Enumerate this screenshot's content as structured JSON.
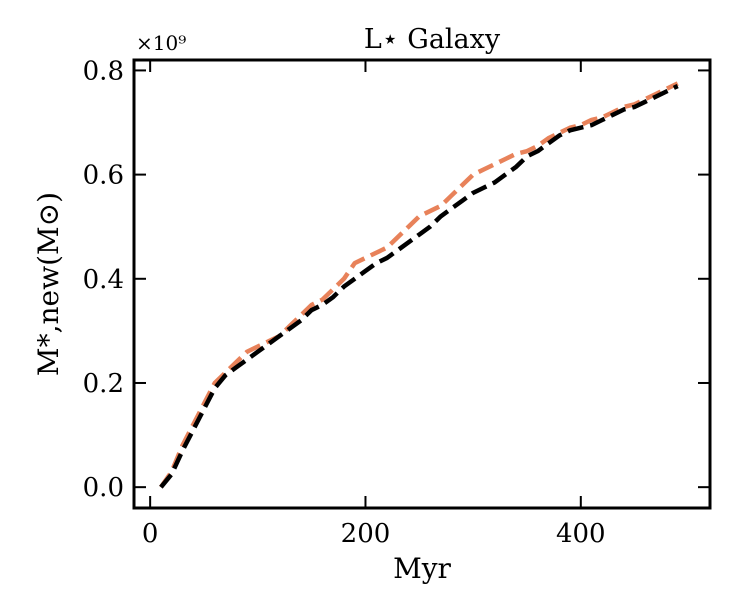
{
  "chart_data": {
    "type": "line",
    "title": "L⋆ Galaxy",
    "xlabel": "Myr",
    "ylabel": "M*,new(M⊙)",
    "y_multiplier": "×10⁹",
    "xlim": [
      -15,
      520
    ],
    "ylim": [
      -0.04,
      0.82
    ],
    "xticks": [
      0,
      200,
      400
    ],
    "xtick_labels": [
      "0",
      "200",
      "400"
    ],
    "yticks": [
      0.0,
      0.2,
      0.4,
      0.6,
      0.8
    ],
    "ytick_labels": [
      "0.0",
      "0.2",
      "0.4",
      "0.6",
      "0.8"
    ],
    "series": [
      {
        "name": "orange-dashed",
        "color": "#e8825a",
        "x": [
          10,
          20,
          30,
          40,
          50,
          60,
          70,
          80,
          90,
          100,
          110,
          120,
          130,
          140,
          150,
          160,
          170,
          180,
          190,
          200,
          210,
          220,
          230,
          240,
          250,
          260,
          270,
          280,
          290,
          300,
          310,
          320,
          330,
          340,
          350,
          360,
          370,
          380,
          390,
          400,
          410,
          420,
          430,
          440,
          450,
          460,
          470,
          480,
          490
        ],
        "values": [
          0.0,
          0.03,
          0.08,
          0.12,
          0.16,
          0.2,
          0.22,
          0.24,
          0.26,
          0.27,
          0.28,
          0.29,
          0.31,
          0.33,
          0.35,
          0.36,
          0.38,
          0.4,
          0.43,
          0.44,
          0.45,
          0.46,
          0.48,
          0.5,
          0.52,
          0.53,
          0.54,
          0.56,
          0.58,
          0.6,
          0.61,
          0.62,
          0.63,
          0.64,
          0.645,
          0.655,
          0.67,
          0.68,
          0.69,
          0.695,
          0.705,
          0.71,
          0.72,
          0.73,
          0.735,
          0.745,
          0.755,
          0.765,
          0.775
        ]
      },
      {
        "name": "black-dashed",
        "color": "#000000",
        "x": [
          10,
          20,
          30,
          40,
          50,
          60,
          70,
          80,
          90,
          100,
          110,
          120,
          130,
          140,
          150,
          160,
          170,
          180,
          190,
          200,
          210,
          220,
          230,
          240,
          250,
          260,
          270,
          280,
          290,
          300,
          310,
          320,
          330,
          340,
          350,
          360,
          370,
          380,
          390,
          400,
          410,
          420,
          430,
          440,
          450,
          460,
          470,
          480,
          490
        ],
        "values": [
          0.0,
          0.025,
          0.07,
          0.11,
          0.15,
          0.19,
          0.215,
          0.23,
          0.245,
          0.26,
          0.275,
          0.29,
          0.305,
          0.32,
          0.34,
          0.35,
          0.365,
          0.385,
          0.4,
          0.415,
          0.43,
          0.44,
          0.455,
          0.47,
          0.485,
          0.5,
          0.52,
          0.535,
          0.55,
          0.565,
          0.575,
          0.585,
          0.6,
          0.615,
          0.635,
          0.645,
          0.66,
          0.675,
          0.685,
          0.69,
          0.695,
          0.705,
          0.715,
          0.725,
          0.73,
          0.74,
          0.75,
          0.76,
          0.77
        ]
      }
    ]
  }
}
